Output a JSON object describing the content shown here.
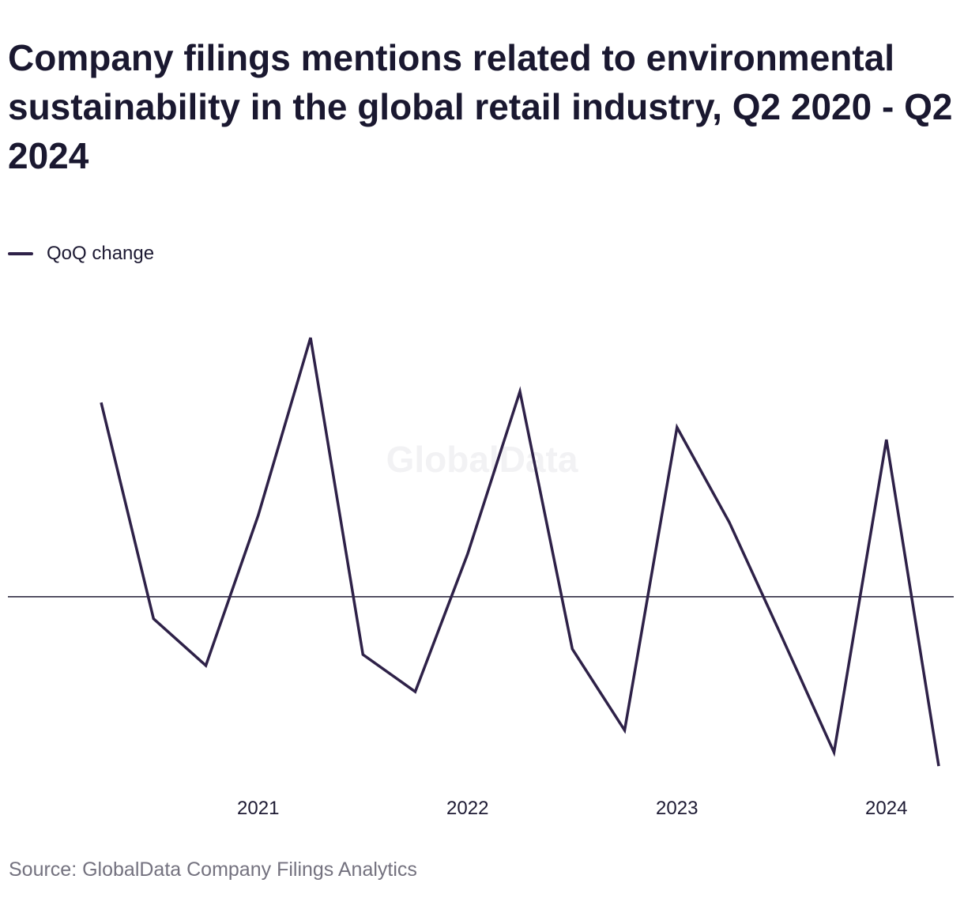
{
  "title": "Company filings mentions related to environmental sustainability in the global retail industry, Q2 2020 - Q2 2024",
  "legend": {
    "label": "QoQ change"
  },
  "watermark": "GlobalData",
  "source": "Source: GlobalData Company Filings Analytics",
  "colors": {
    "series": "#2e2148",
    "zero_line": "#1d1a33",
    "watermark": "#f2f2f4",
    "source": "#74727f"
  },
  "chart_data": {
    "type": "line",
    "title": "Company filings mentions related to environmental sustainability in the global retail industry, Q2 2020 - Q2 2024",
    "xlabel": "",
    "ylabel": "",
    "x": [
      "Q2 2020",
      "Q3 2020",
      "Q4 2020",
      "Q1 2021",
      "Q2 2021",
      "Q3 2021",
      "Q4 2021",
      "Q1 2022",
      "Q2 2022",
      "Q3 2022",
      "Q4 2022",
      "Q1 2023",
      "Q2 2023",
      "Q3 2023",
      "Q4 2023",
      "Q1 2024",
      "Q2 2024"
    ],
    "x_ticks": [
      {
        "label": "2021",
        "at": "Q1 2021"
      },
      {
        "label": "2022",
        "at": "Q1 2022"
      },
      {
        "label": "2023",
        "at": "Q1 2023"
      },
      {
        "label": "2024",
        "at": "Q1 2024"
      }
    ],
    "series": [
      {
        "name": "QoQ change",
        "values": [
          14.1,
          -1.6,
          -5.0,
          5.9,
          18.8,
          -4.2,
          -6.9,
          3.1,
          14.9,
          -3.8,
          -9.7,
          12.3,
          5.4,
          -2.9,
          -11.3,
          11.4,
          -12.3
        ]
      }
    ],
    "ylim": [
      -13.5,
      21.0
    ],
    "zero_line": true,
    "grid": false,
    "legend_position": "top-left"
  }
}
